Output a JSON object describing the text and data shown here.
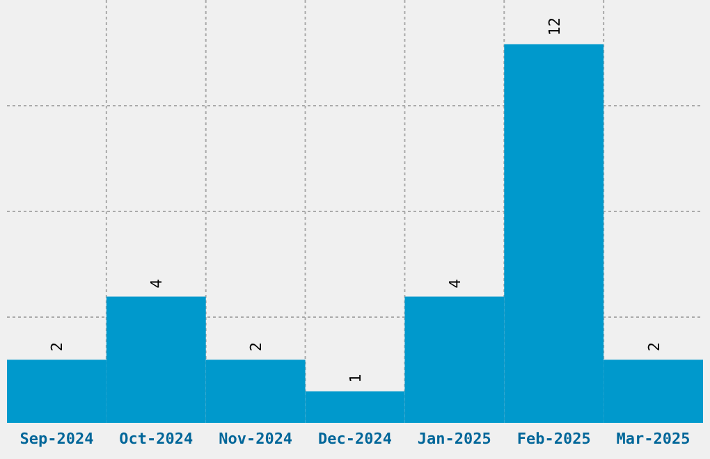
{
  "chart_data": {
    "type": "bar",
    "categories": [
      "Sep-2024",
      "Oct-2024",
      "Nov-2024",
      "Dec-2024",
      "Jan-2025",
      "Feb-2025",
      "Mar-2025"
    ],
    "values": [
      2,
      4,
      2,
      1,
      4,
      12,
      2
    ],
    "color": "#0099cc",
    "data_labels": true,
    "grid": true,
    "tick_labels": "x",
    "ylim": [
      0,
      13.4
    ],
    "yticks": [
      {
        "value": 3.35,
        "label": null
      },
      {
        "value": 6.7,
        "label": null
      },
      {
        "value": 10.05,
        "label": null
      }
    ]
  }
}
